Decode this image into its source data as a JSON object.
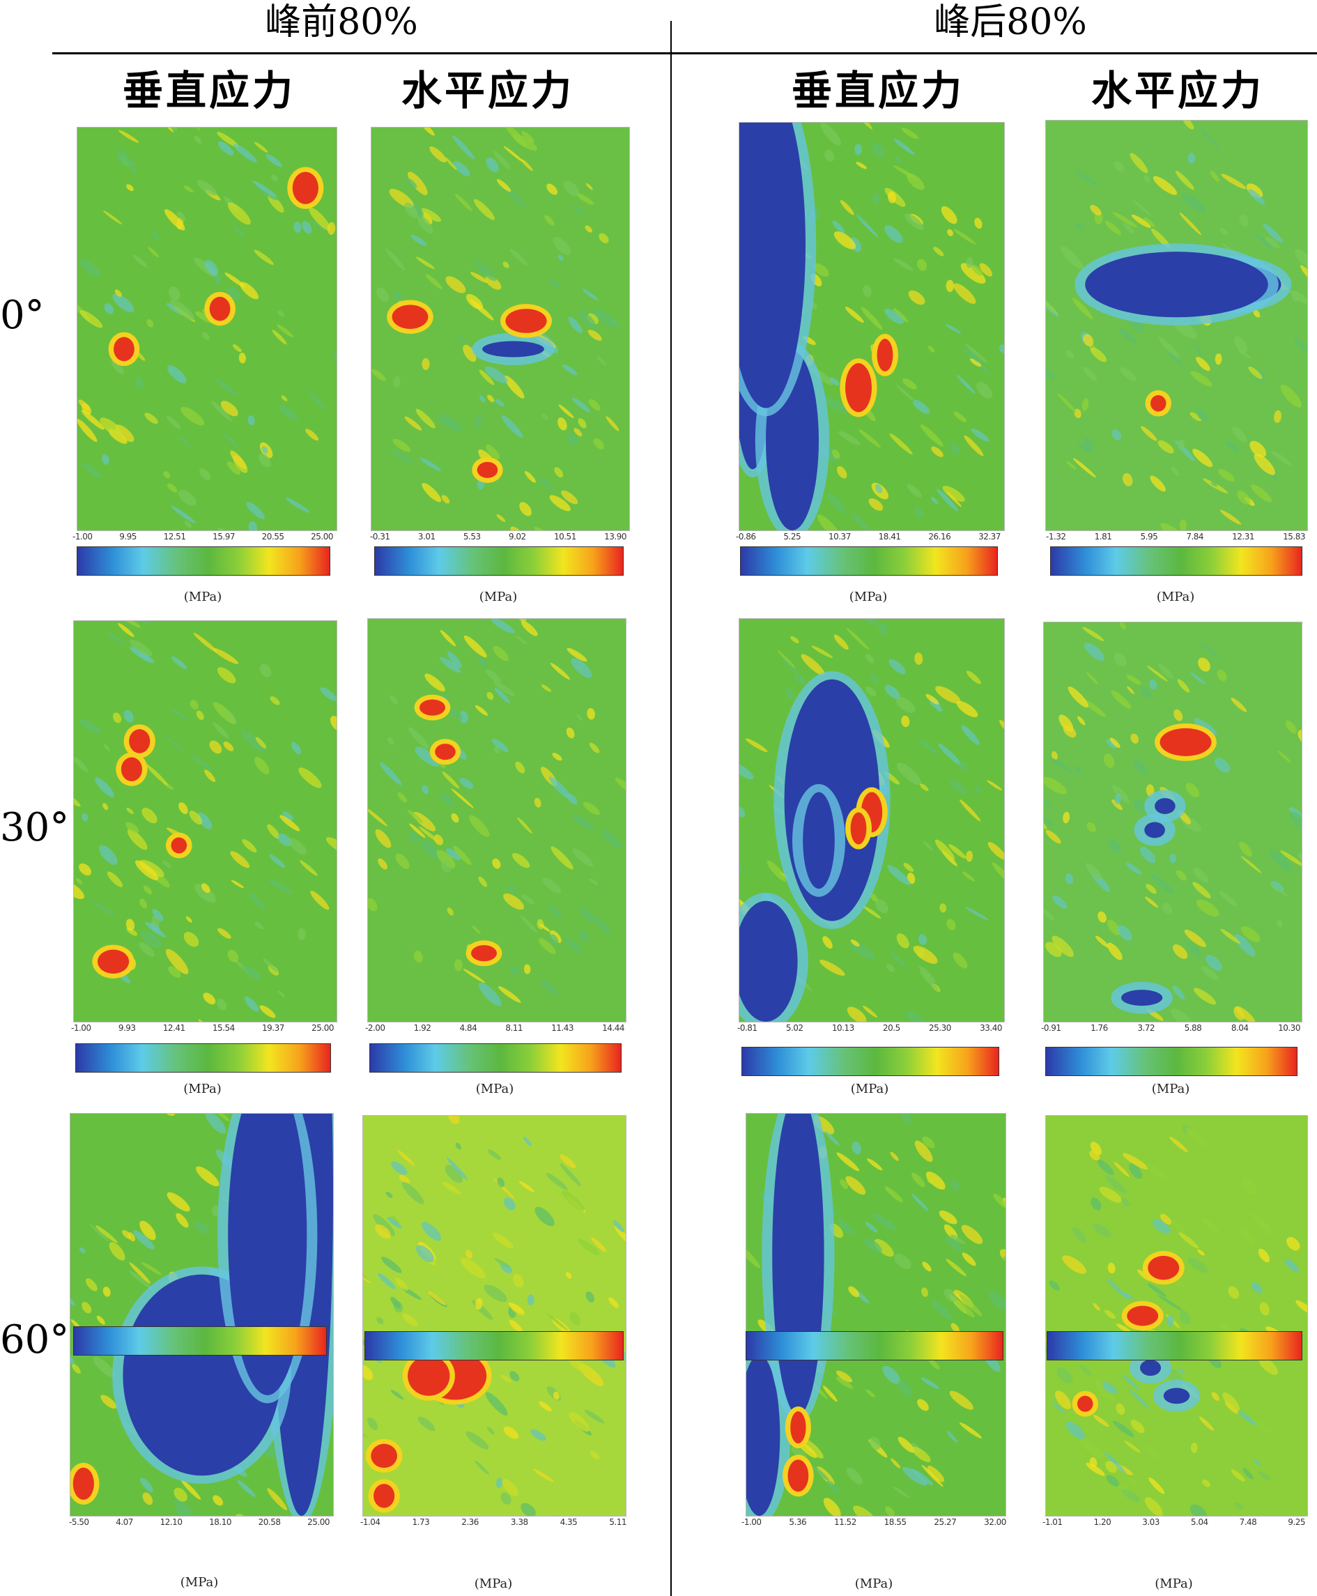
{
  "groups": [
    {
      "title": "峰前80%"
    },
    {
      "title": "峰后80%"
    }
  ],
  "columns": [
    {
      "title": "垂直应力"
    },
    {
      "title": "水平应力"
    },
    {
      "title": "垂直应力"
    },
    {
      "title": "水平应力"
    }
  ],
  "rows": [
    {
      "label": "0°"
    },
    {
      "label": "30°"
    },
    {
      "label": "60°"
    }
  ],
  "colorbar_unit": "(MPa)",
  "panels": [
    {
      "id": "r0c0",
      "ticks": [
        "-1.00",
        "9.95",
        "12.51",
        "15.97",
        "20.55",
        "25.00"
      ]
    },
    {
      "id": "r0c1",
      "ticks": [
        "-0.31",
        "3.01",
        "5.53",
        "9.02",
        "10.51",
        "13.90"
      ]
    },
    {
      "id": "r0c2",
      "ticks": [
        "-0.86",
        "5.25",
        "10.37",
        "18.41",
        "26.16",
        "32.37"
      ]
    },
    {
      "id": "r0c3",
      "ticks": [
        "-1.32",
        "1.81",
        "5.95",
        "7.84",
        "12.31",
        "15.83"
      ]
    },
    {
      "id": "r1c0",
      "ticks": [
        "-1.00",
        "9.93",
        "12.41",
        "15.54",
        "19.37",
        "25.00"
      ]
    },
    {
      "id": "r1c1",
      "ticks": [
        "-2.00",
        "1.92",
        "4.84",
        "8.11",
        "11.43",
        "14.44"
      ]
    },
    {
      "id": "r1c2",
      "ticks": [
        "-0.81",
        "5.02",
        "10.13",
        "20.5",
        "25.30",
        "33.40"
      ]
    },
    {
      "id": "r1c3",
      "ticks": [
        "-0.91",
        "1.76",
        "3.72",
        "5.88",
        "8.04",
        "10.30"
      ]
    },
    {
      "id": "r2c0",
      "ticks": [
        "-5.50",
        "4.07",
        "12.10",
        "18.10",
        "20.58",
        "25.00"
      ]
    },
    {
      "id": "r2c1",
      "ticks": [
        "-1.04",
        "1.73",
        "2.36",
        "3.38",
        "4.35",
        "5.11"
      ]
    },
    {
      "id": "r2c2",
      "ticks": [
        "-1.00",
        "5.36",
        "11.52",
        "18.55",
        "25.27",
        "32.00"
      ]
    },
    {
      "id": "r2c3",
      "ticks": [
        "-1.01",
        "1.20",
        "3.03",
        "5.04",
        "7.48",
        "9.25"
      ]
    }
  ]
}
